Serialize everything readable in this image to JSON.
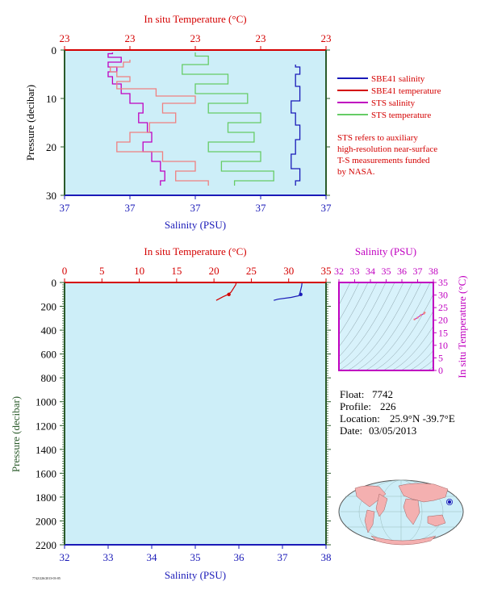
{
  "colors": {
    "panel_bg": "#cdeef8",
    "ts_bg": "#d8f2fb",
    "red": "#d40000",
    "blue": "#1a1ab8",
    "magenta": "#c000c0",
    "green": "#2a5a2a",
    "sts_temp": "#66cc66",
    "sts_temp_pink": "#f08080"
  },
  "float_info": {
    "float_label": "Float:",
    "float_value": "7742",
    "profile_label": "Profile:",
    "profile_value": "226",
    "location_label": "Location:",
    "location_value": "25.9°N  -39.7°E",
    "date_label": "Date:",
    "date_value": "03/05/2013"
  },
  "tiny_footer": "7742/226/2013-03-05",
  "chart_data": [
    {
      "id": "near-surface",
      "type": "line",
      "title_top": "In situ Temperature (°C)",
      "xlabel": "Salinity (PSU)",
      "ylabel": "Pressure (decibar)",
      "ylim": [
        0,
        30
      ],
      "y_ticks": [
        "0",
        "10",
        "20",
        "30"
      ],
      "top_ticks": [
        "23",
        "23",
        "23",
        "23",
        "23"
      ],
      "bottom_ticks": [
        "37",
        "37",
        "37",
        "37",
        "37"
      ],
      "temp_range": [
        22.9,
        23.3
      ],
      "sal_range": [
        36.9,
        37.5
      ],
      "legend": [
        {
          "label": "SBE41 salinity",
          "color": "#1a1ab8"
        },
        {
          "label": "SBE41 temperature",
          "color": "#d40000"
        },
        {
          "label": "STS salinity",
          "color": "#c000c0"
        },
        {
          "label": "STS temperature",
          "color": "#66cc66"
        }
      ],
      "note": [
        "STS refers to auxiliary",
        "high-resolution near-surface",
        "T-S measurements funded",
        "by NASA."
      ],
      "series": [
        {
          "name": "SBE41 salinity",
          "values": [
            [
              37.43,
              3
            ],
            [
              37.44,
              4
            ],
            [
              37.43,
              6
            ],
            [
              37.44,
              9
            ],
            [
              37.42,
              12
            ],
            [
              37.43,
              14
            ],
            [
              37.44,
              17
            ],
            [
              37.43,
              20
            ],
            [
              37.42,
              23
            ],
            [
              37.44,
              26
            ],
            [
              37.43,
              28
            ]
          ]
        },
        {
          "name": "STS salinity",
          "values": [
            [
              37.01,
              0.5
            ],
            [
              37.0,
              1
            ],
            [
              37.03,
              2
            ],
            [
              37.0,
              3
            ],
            [
              37.02,
              4
            ],
            [
              37.0,
              5
            ],
            [
              37.01,
              6
            ],
            [
              37.03,
              8
            ],
            [
              37.05,
              10
            ],
            [
              37.08,
              12
            ],
            [
              37.07,
              14
            ],
            [
              37.09,
              16
            ],
            [
              37.1,
              18
            ],
            [
              37.08,
              20
            ],
            [
              37.1,
              22
            ],
            [
              37.12,
              24
            ],
            [
              37.13,
              26
            ],
            [
              37.12,
              28
            ]
          ]
        },
        {
          "name": "STS temperature",
          "values": [
            [
              23.1,
              0.5
            ],
            [
              23.12,
              2
            ],
            [
              23.08,
              4
            ],
            [
              23.15,
              6
            ],
            [
              23.1,
              8
            ],
            [
              23.18,
              10
            ],
            [
              23.12,
              12
            ],
            [
              23.2,
              14
            ],
            [
              23.15,
              16
            ],
            [
              23.19,
              18
            ],
            [
              23.12,
              20
            ],
            [
              23.2,
              22
            ],
            [
              23.14,
              24
            ],
            [
              23.22,
              26
            ],
            [
              23.16,
              28
            ]
          ]
        },
        {
          "name": "SBE41 temperature",
          "values": [
            [
              23.0,
              2
            ],
            [
              22.99,
              3
            ],
            [
              22.97,
              4
            ],
            [
              22.98,
              5
            ],
            [
              23.0,
              6
            ],
            [
              22.98,
              7
            ],
            [
              23.04,
              9
            ],
            [
              23.1,
              10
            ],
            [
              23.05,
              12
            ],
            [
              23.07,
              14
            ],
            [
              23.03,
              16
            ],
            [
              23.0,
              18
            ],
            [
              22.98,
              20
            ],
            [
              23.05,
              22
            ],
            [
              23.1,
              24
            ],
            [
              23.07,
              26
            ],
            [
              23.12,
              28
            ]
          ]
        }
      ]
    },
    {
      "id": "full-profile",
      "type": "line",
      "title_top": "In situ Temperature (°C)",
      "xlabel": "Salinity (PSU)",
      "ylabel": "Pressure (decibar)",
      "ylim": [
        0,
        2200
      ],
      "y_ticks": [
        "0",
        "200",
        "400",
        "600",
        "800",
        "1000",
        "1200",
        "1400",
        "1600",
        "1800",
        "2000",
        "2200"
      ],
      "top_ticks": [
        "0",
        "5",
        "10",
        "15",
        "20",
        "25",
        "30",
        "35"
      ],
      "bottom_ticks": [
        "32",
        "33",
        "34",
        "35",
        "36",
        "37",
        "38"
      ],
      "temp_range": [
        0,
        35
      ],
      "sal_range": [
        32,
        38
      ],
      "series": [
        {
          "name": "temperature",
          "values": [
            [
              23.0,
              0
            ],
            [
              22.9,
              20
            ],
            [
              22.6,
              50
            ],
            [
              22.3,
              80
            ],
            [
              21.9,
              100
            ],
            [
              21.2,
              120
            ],
            [
              20.6,
              140
            ],
            [
              20.3,
              150
            ]
          ]
        },
        {
          "name": "salinity",
          "values": [
            [
              37.45,
              0
            ],
            [
              37.44,
              30
            ],
            [
              37.42,
              60
            ],
            [
              37.4,
              90
            ],
            [
              37.38,
              110
            ],
            [
              37.2,
              125
            ],
            [
              36.9,
              140
            ],
            [
              36.8,
              150
            ]
          ]
        }
      ],
      "markers": [
        {
          "temp": 22.0,
          "p": 100
        },
        {
          "sal": 37.42,
          "p": 100
        }
      ]
    },
    {
      "id": "ts-diagram",
      "type": "scatter",
      "title_top": "Salinity (PSU)",
      "ylabel": "In situ Temperature (°C)",
      "top_ticks": [
        "32",
        "33",
        "34",
        "35",
        "36",
        "37",
        "38"
      ],
      "right_ticks": [
        "0",
        "5",
        "10",
        "15",
        "20",
        "25",
        "30",
        "35"
      ],
      "xlim": [
        32,
        38
      ],
      "ylim": [
        0,
        35
      ],
      "points": [
        [
          36.8,
          20.3
        ],
        [
          37.0,
          21.0
        ],
        [
          37.2,
          22.0
        ],
        [
          37.4,
          22.6
        ],
        [
          37.45,
          23.0
        ]
      ]
    }
  ]
}
